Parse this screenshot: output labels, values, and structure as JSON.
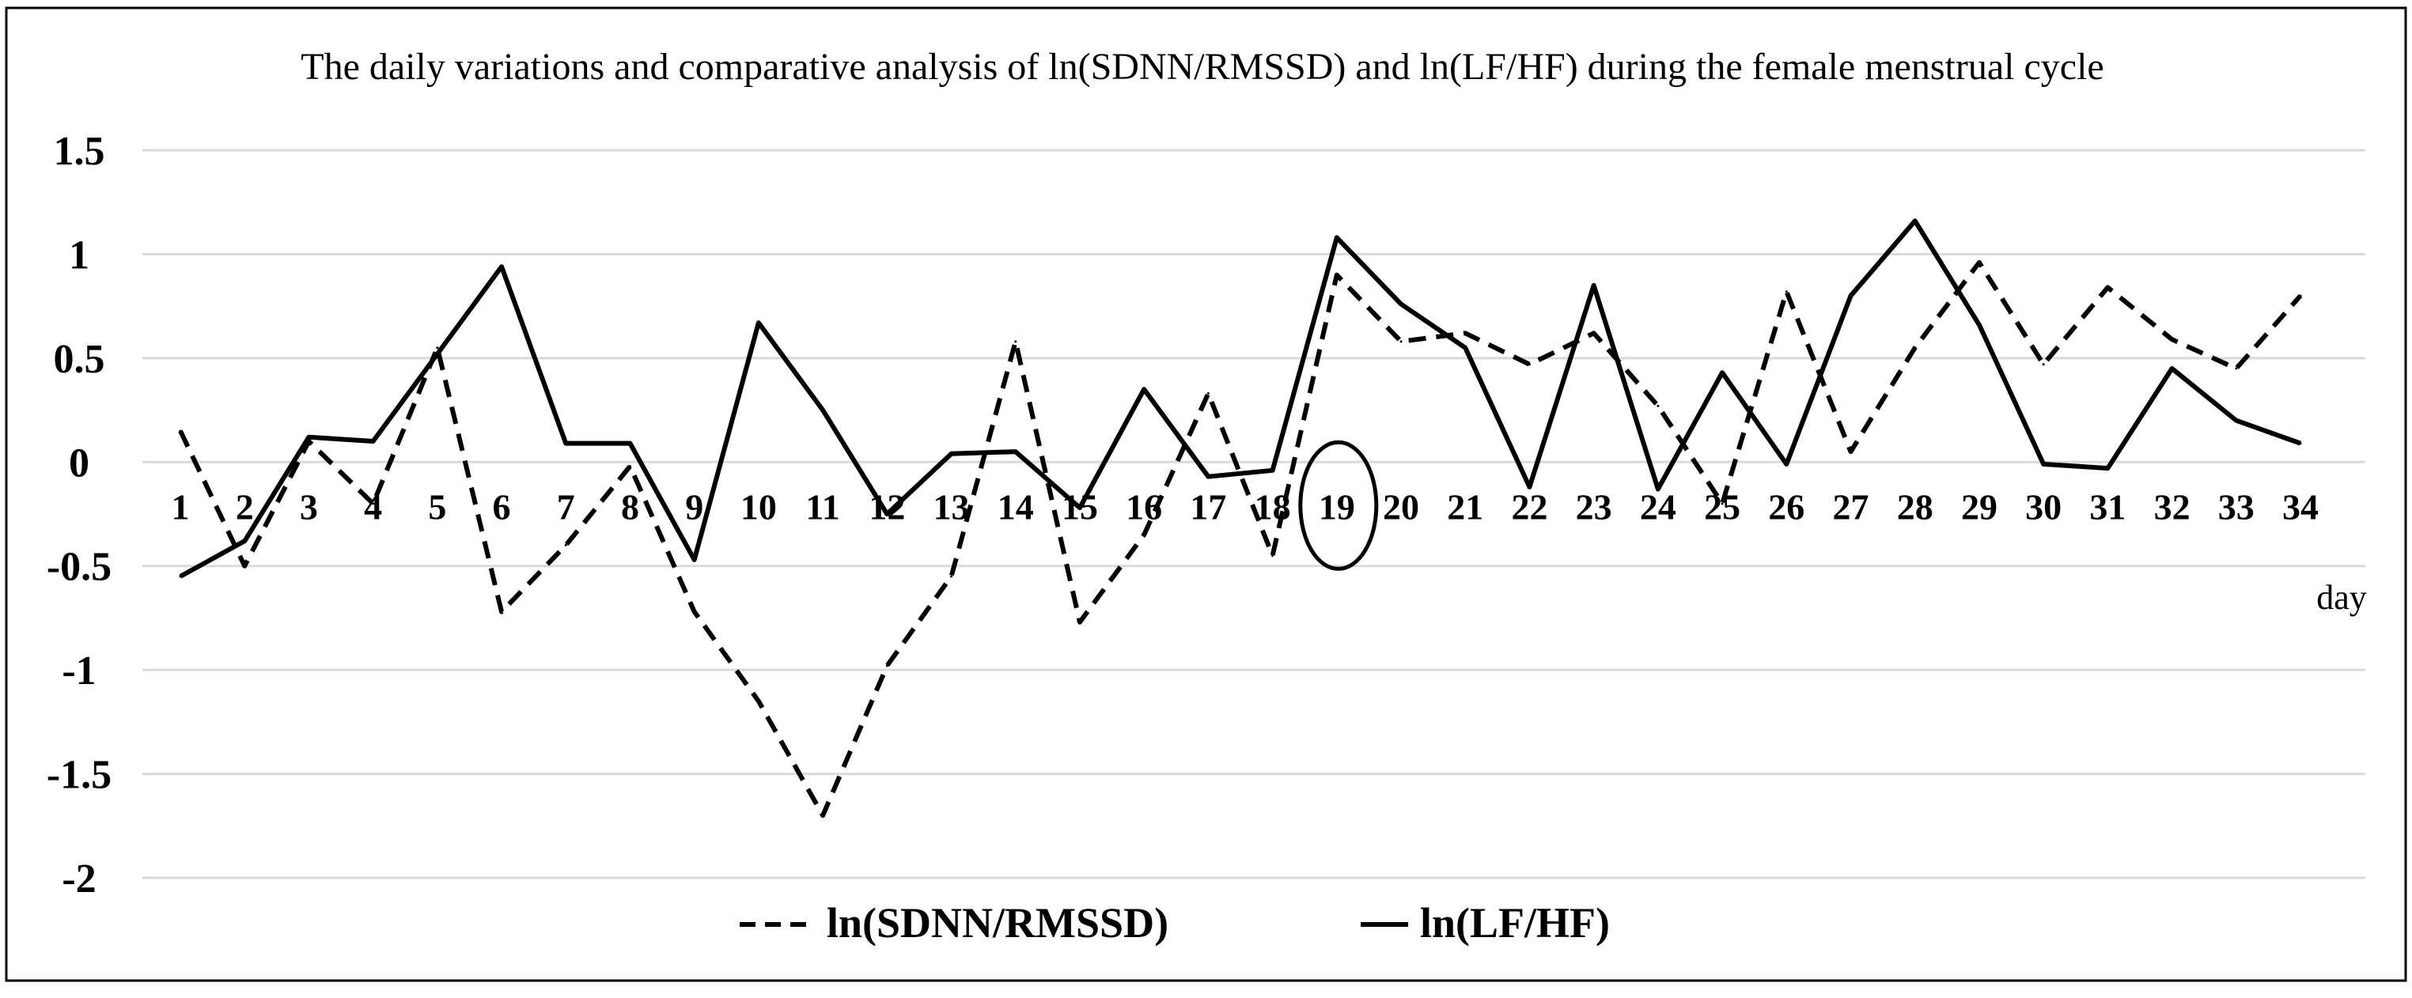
{
  "chart_data": {
    "type": "line",
    "title": "The daily variations and comparative analysis of ln(SDNN/RMSSD) and ln(LF/HF) during the female menstrual cycle",
    "xlabel": "day",
    "ylabel": "",
    "ylim": [
      -2,
      1.5
    ],
    "yticks": [
      "1.5",
      "1",
      "0.5",
      "0",
      "-0.5",
      "-1",
      "-1.5",
      "-2"
    ],
    "grid": true,
    "legend_position": "bottom",
    "highlight_day": 19,
    "x": [
      "1",
      "2",
      "3",
      "4",
      "5",
      "6",
      "7",
      "8",
      "9",
      "10",
      "11",
      "12",
      "13",
      "14",
      "15",
      "16",
      "17",
      "18",
      "19",
      "20",
      "21",
      "22",
      "23",
      "24",
      "25",
      "26",
      "27",
      "28",
      "29",
      "30",
      "31",
      "32",
      "33",
      "34"
    ],
    "series": [
      {
        "name": "ln(SDNN/RMSSD)",
        "style": "dashed",
        "color": "#000000",
        "values": [
          0.15,
          -0.5,
          0.1,
          -0.2,
          0.55,
          -0.72,
          -0.4,
          -0.02,
          -0.72,
          -1.15,
          -1.7,
          -0.98,
          -0.55,
          0.58,
          -0.77,
          -0.35,
          0.33,
          -0.45,
          0.9,
          0.58,
          0.62,
          0.47,
          0.62,
          0.27,
          -0.2,
          0.82,
          0.05,
          0.55,
          0.96,
          0.47,
          0.84,
          0.59,
          0.45,
          0.8
        ]
      },
      {
        "name": "ln(LF/HF)",
        "style": "solid",
        "color": "#000000",
        "values": [
          -0.55,
          -0.38,
          0.12,
          0.1,
          0.52,
          0.94,
          0.09,
          0.09,
          -0.47,
          0.67,
          0.25,
          -0.25,
          0.04,
          0.05,
          -0.22,
          0.35,
          -0.07,
          -0.04,
          1.08,
          0.76,
          0.55,
          -0.12,
          0.85,
          -0.13,
          0.43,
          -0.01,
          0.8,
          1.16,
          0.66,
          -0.01,
          -0.03,
          0.45,
          0.2,
          0.09
        ]
      }
    ]
  }
}
